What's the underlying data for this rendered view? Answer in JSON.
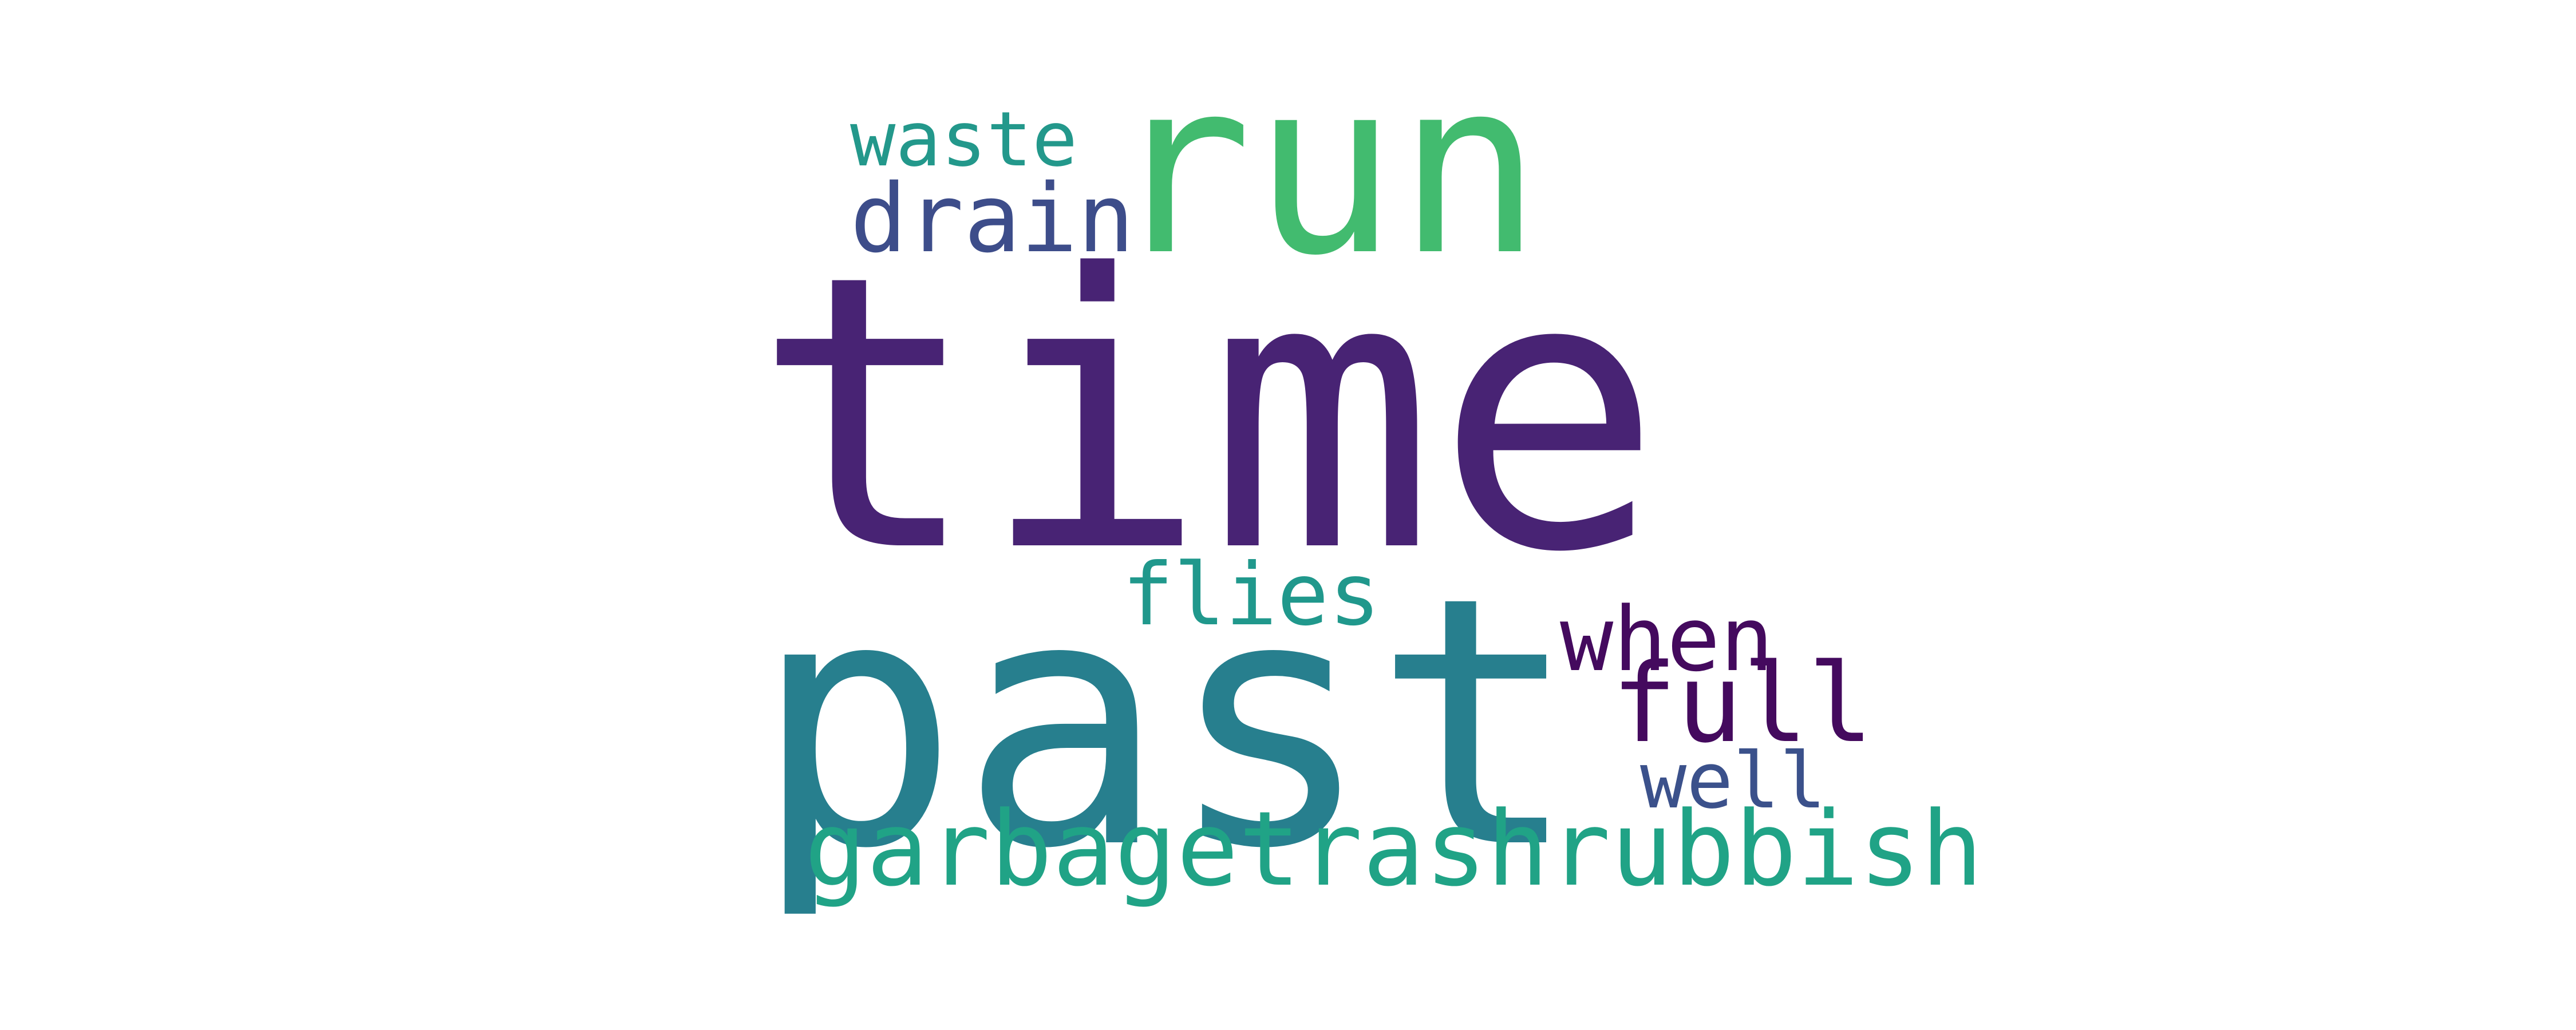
{
  "words": {
    "time": {
      "text": "time",
      "color": "#482374"
    },
    "past": {
      "text": "past",
      "color": "#277f8e"
    },
    "run": {
      "text": "run",
      "color": "#42bb6f"
    },
    "garbage": {
      "text": "garbagetrashrubbish",
      "color": "#20a386"
    },
    "waste": {
      "text": "waste",
      "color": "#23988b"
    },
    "drain": {
      "text": "drain",
      "color": "#3d4d8a"
    },
    "flies": {
      "text": "flies",
      "color": "#20988c"
    },
    "when": {
      "text": "when",
      "color": "#440a5e"
    },
    "full": {
      "text": "full",
      "color": "#440a5e"
    },
    "well": {
      "text": "well",
      "color": "#3b518b"
    }
  }
}
